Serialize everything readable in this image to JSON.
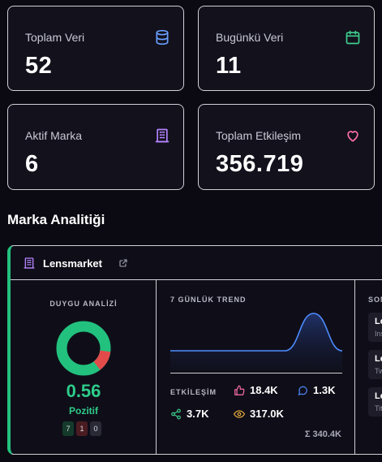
{
  "stats": [
    {
      "label": "Toplam Veri",
      "value": "52",
      "icon": "database-icon",
      "color": "#6aa0ff"
    },
    {
      "label": "Bugünkü Veri",
      "value": "11",
      "icon": "calendar-icon",
      "color": "#3ecf8e"
    },
    {
      "label": "Aktif Marka",
      "value": "6",
      "icon": "building-icon",
      "color": "#b483ff"
    },
    {
      "label": "Toplam Etkileşim",
      "value": "356.719",
      "icon": "heart-icon",
      "color": "#ff6fa8"
    }
  ],
  "section_title": "Marka Analitiği",
  "brand": {
    "name": "Lensmarket",
    "accent": "#22c17e",
    "sentiment": {
      "title": "DUYGU ANALİZİ",
      "score": "0.56",
      "label": "Pozitif",
      "positive": "7",
      "negative": "1",
      "neutral": "0",
      "positive_color": "#22c17e",
      "negative_color": "#e34b4b"
    },
    "trend": {
      "title": "7 GÜNLÜK TREND",
      "line_color": "#4d8cff",
      "values": [
        2,
        2,
        2,
        2,
        2,
        9,
        2
      ]
    },
    "engagement": {
      "title": "ETKİLEŞİM",
      "likes": "18.4K",
      "comments": "1.3K",
      "shares": "3.7K",
      "views": "317.0K",
      "total": "Σ 340.4K"
    },
    "recent": {
      "title": "SON",
      "items": [
        {
          "name": "Le",
          "sub": "Ins"
        },
        {
          "name": "Le",
          "sub": "Tw"
        },
        {
          "name": "Le",
          "sub": "Tit"
        }
      ]
    }
  }
}
